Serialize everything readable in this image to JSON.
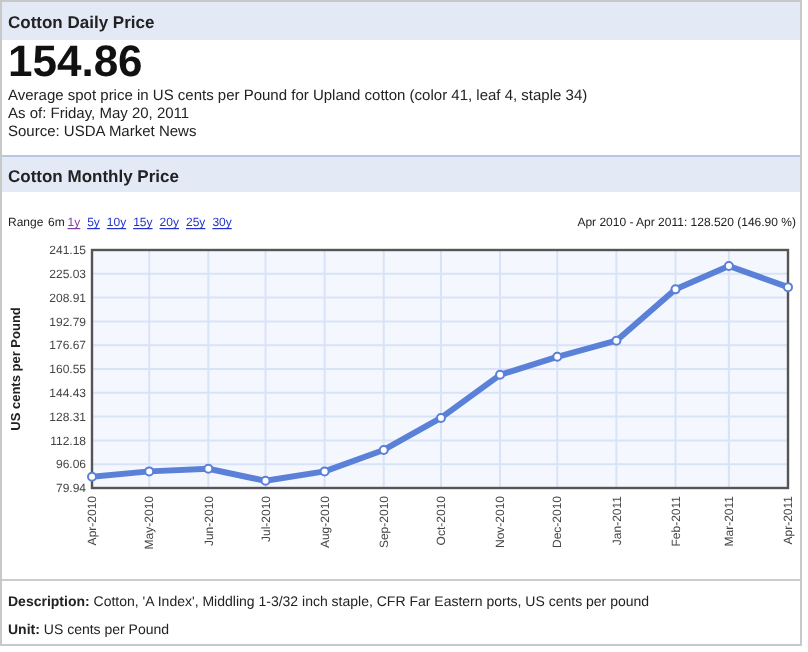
{
  "chart_data": {
    "type": "line",
    "title": "Cotton Monthly Price",
    "subtitle": "Apr 2010 - Apr 2011: 128.520 (146.90 %)",
    "ylabel": "US cents per Pound",
    "annotations": [
      "Cotton Daily Price",
      "154.86",
      "Average spot price in US cents per Pound for Upland cotton (color 41, leaf 4, staple 34)",
      "As of: Friday, May 20, 2011",
      "Source: USDA Market News",
      "Range 6m 1y 5y 10y 15y 20y 25y 30y",
      "Description: Cotton, 'A Index', Middling 1-3/32 inch staple, CFR Far Eastern ports, US cents per pound",
      "Unit: US cents per Pound"
    ],
    "x": [
      "2010-04",
      "2010-05",
      "2010-06",
      "2010-07",
      "2010-08",
      "2010-09",
      "2010-10",
      "2010-11",
      "2010-12",
      "2011-01",
      "2011-02",
      "2011-03",
      "2011-04"
    ],
    "series": [
      {
        "color": "#5b80d8",
        "values": [
          87.5,
          91.2,
          93.0,
          84.8,
          91.2,
          105.7,
          127.4,
          156.6,
          168.8,
          179.7,
          214.5,
          230.3,
          216.0
        ]
      }
    ],
    "xlim": [
      "2010-04",
      "2011-04"
    ],
    "xticks": [
      {
        "value": "2010-04",
        "label": "Apr-2010"
      },
      {
        "value": "2010-05",
        "label": "May-2010"
      },
      {
        "value": "2010-06",
        "label": "Jun-2010"
      },
      {
        "value": "2010-07",
        "label": "Jul-2010"
      },
      {
        "value": "2010-08",
        "label": "Aug-2010"
      },
      {
        "value": "2010-09",
        "label": "Sep-2010"
      },
      {
        "value": "2010-10",
        "label": "Oct-2010"
      },
      {
        "value": "2010-11",
        "label": "Nov-2010"
      },
      {
        "value": "2010-12",
        "label": "Dec-2010"
      },
      {
        "value": "2011-01",
        "label": "Jan-2011"
      },
      {
        "value": "2011-02",
        "label": "Feb-2011"
      },
      {
        "value": "2011-03",
        "label": "Mar-2011"
      },
      {
        "value": "2011-04",
        "label": "Apr-2011"
      }
    ],
    "ylim": [
      79.94,
      241.15
    ],
    "yticks": [
      79.94,
      96.06,
      112.18,
      128.31,
      144.43,
      160.55,
      176.67,
      192.79,
      208.91,
      225.03,
      241.15
    ],
    "grid": true,
    "marker": "circle",
    "line_style": "solid"
  }
}
